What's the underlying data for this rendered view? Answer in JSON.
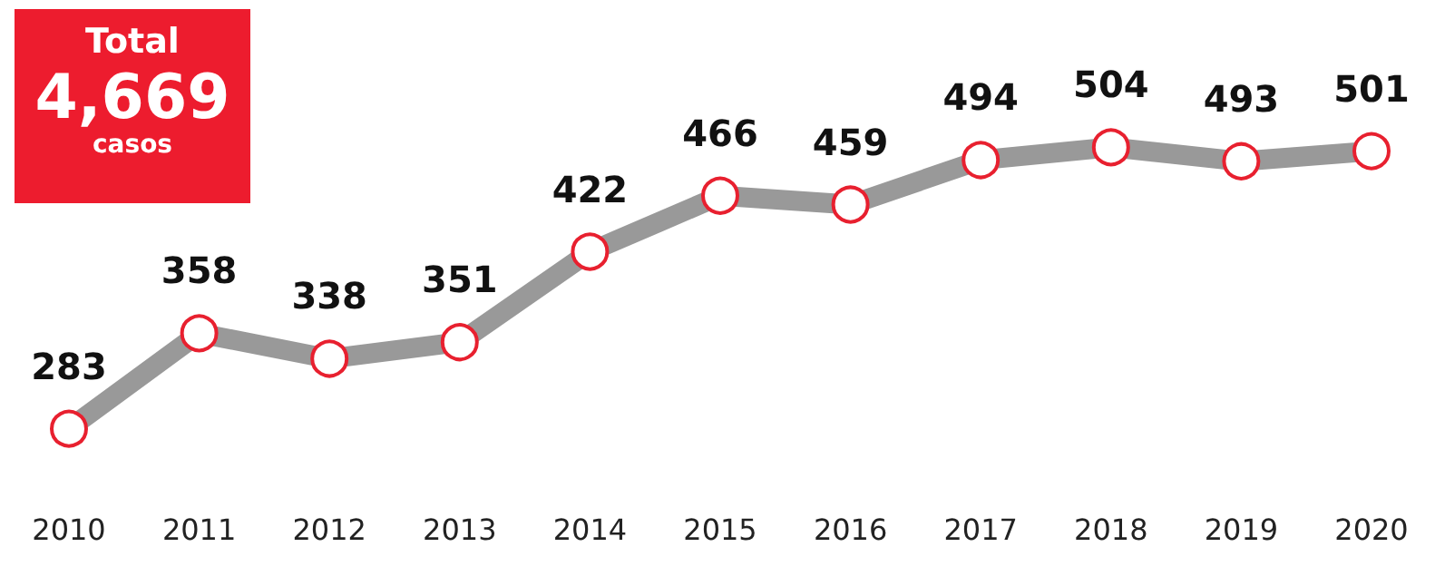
{
  "chart_data": {
    "type": "line",
    "categories": [
      "2010",
      "2011",
      "2012",
      "2013",
      "2014",
      "2015",
      "2016",
      "2017",
      "2018",
      "2019",
      "2020"
    ],
    "series": [
      {
        "color": "#999999",
        "values": [
          283,
          358,
          338,
          351,
          422,
          466,
          459,
          494,
          504,
          493,
          501
        ]
      }
    ],
    "data_labels": true,
    "marker": "circle",
    "grid": false,
    "annotations": [
      "Total",
      "4,669",
      "casos"
    ]
  }
}
